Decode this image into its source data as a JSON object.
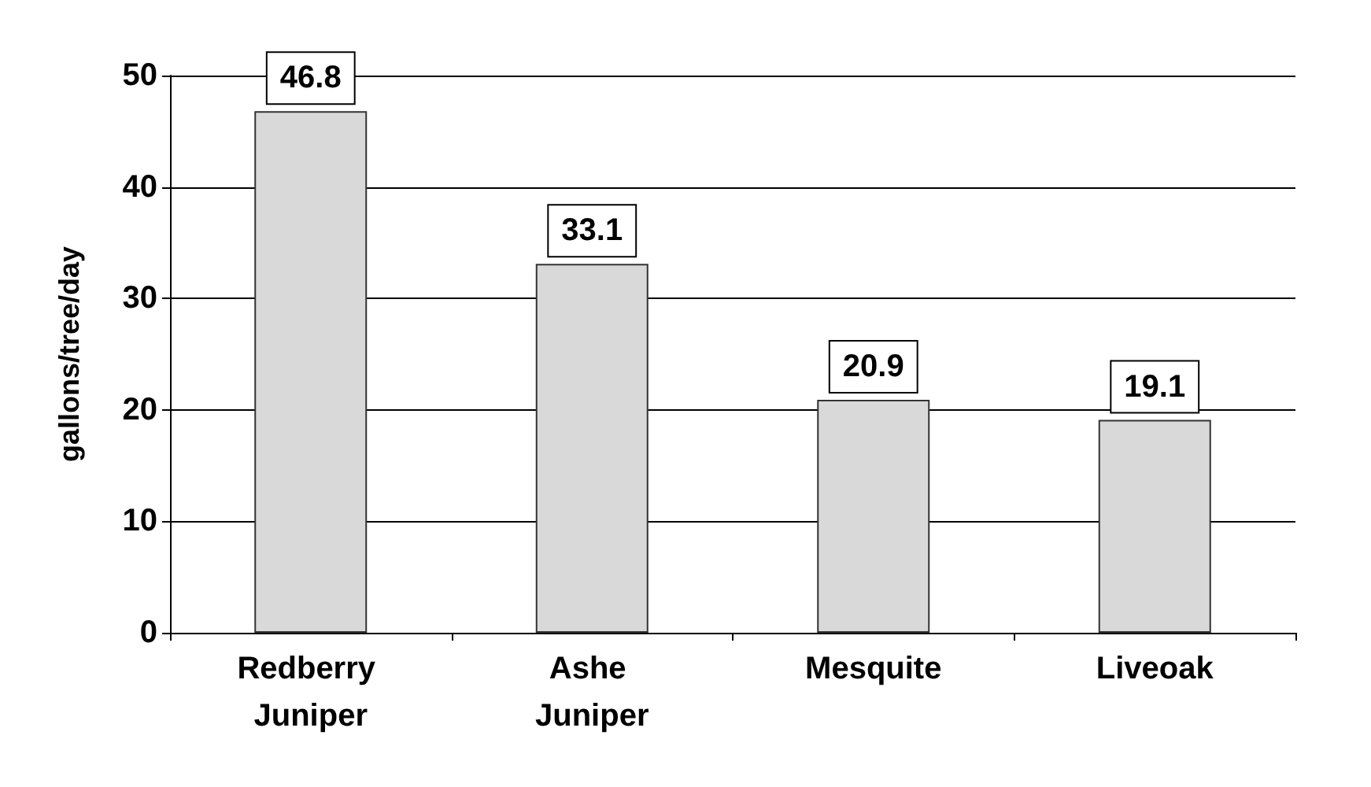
{
  "chart_data": {
    "type": "bar",
    "ylabel": "gallons/tree/day",
    "categories": [
      "Redberry Juniper",
      "Ashe Juniper",
      "Mesquite",
      "Liveoak"
    ],
    "values": [
      46.8,
      33.1,
      20.9,
      19.1
    ],
    "color": "#d9d9d9",
    "ylim": [
      0,
      50
    ],
    "yticks": [
      0,
      10,
      20,
      30,
      40,
      50
    ],
    "grid": "y",
    "data_labels": true
  }
}
